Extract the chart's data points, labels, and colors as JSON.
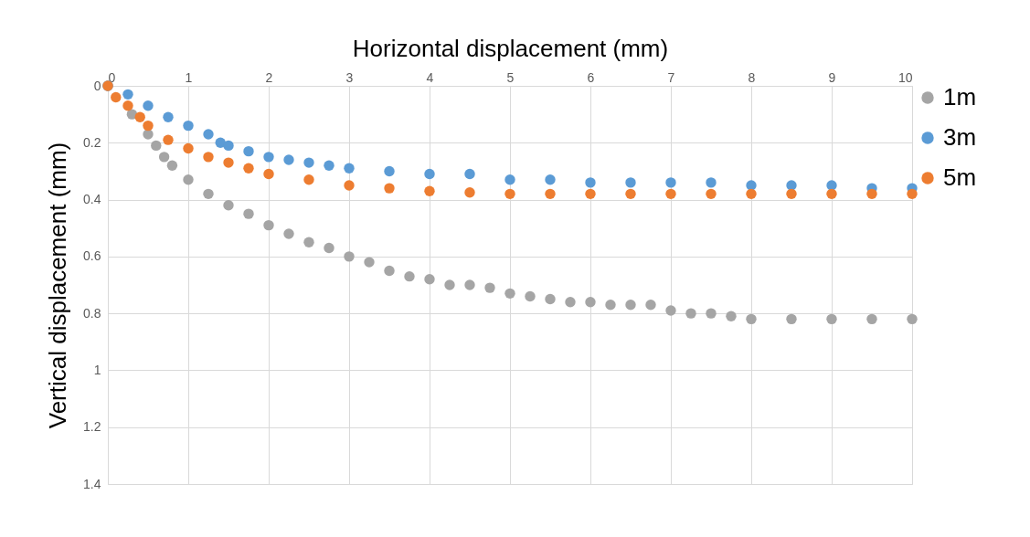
{
  "chart_data": {
    "type": "scatter",
    "xlabel": "Horizontal displacement (mm)",
    "ylabel": "Vertical displacement (mm)",
    "xlim": [
      0,
      10
    ],
    "xticks": [
      0,
      1,
      2,
      3,
      4,
      5,
      6,
      7,
      8,
      9,
      10
    ],
    "ylim": [
      1.4,
      0
    ],
    "yticks": [
      0,
      0.2,
      0.4,
      0.6,
      0.8,
      1,
      1.2,
      1.4
    ],
    "grid": true,
    "legend": "right",
    "marker": "circle",
    "series": [
      {
        "name": "1m",
        "color": "#a5a5a5",
        "x": [
          0,
          0.3,
          0.5,
          0.6,
          0.7,
          0.8,
          1,
          1.25,
          1.5,
          1.75,
          2,
          2.25,
          2.5,
          2.75,
          3,
          3.25,
          3.5,
          3.75,
          4,
          4.25,
          4.5,
          4.75,
          5,
          5.25,
          5.5,
          5.75,
          6,
          6.25,
          6.5,
          6.75,
          7,
          7.25,
          7.5,
          7.75,
          8,
          8.5,
          9,
          9.5,
          10
        ],
        "values": [
          0,
          0.1,
          0.17,
          0.21,
          0.25,
          0.28,
          0.33,
          0.38,
          0.42,
          0.45,
          0.49,
          0.52,
          0.55,
          0.57,
          0.6,
          0.62,
          0.65,
          0.67,
          0.68,
          0.7,
          0.7,
          0.71,
          0.73,
          0.74,
          0.75,
          0.76,
          0.76,
          0.77,
          0.77,
          0.77,
          0.79,
          0.8,
          0.8,
          0.81,
          0.82,
          0.82,
          0.82,
          0.82,
          0.82
        ]
      },
      {
        "name": "3m",
        "color": "#5b9bd5",
        "x": [
          0,
          0.25,
          0.5,
          0.75,
          1,
          1.25,
          1.4,
          1.5,
          1.75,
          2,
          2.25,
          2.5,
          2.75,
          3,
          3.5,
          4,
          4.5,
          5,
          5.5,
          6,
          6.5,
          7,
          7.5,
          8,
          8.5,
          9,
          9.5,
          10
        ],
        "values": [
          0,
          0.03,
          0.07,
          0.11,
          0.14,
          0.17,
          0.2,
          0.21,
          0.23,
          0.25,
          0.26,
          0.27,
          0.28,
          0.29,
          0.3,
          0.31,
          0.31,
          0.33,
          0.33,
          0.34,
          0.34,
          0.34,
          0.34,
          0.35,
          0.35,
          0.35,
          0.36,
          0.36
        ]
      },
      {
        "name": "5m",
        "color": "#ed7d31",
        "x": [
          0,
          0.1,
          0.25,
          0.4,
          0.5,
          0.75,
          1,
          1.25,
          1.5,
          1.75,
          2,
          2.5,
          3,
          3.5,
          4,
          4.5,
          5,
          5.5,
          6,
          6.5,
          7,
          7.5,
          8,
          8.5,
          9,
          9.5,
          10
        ],
        "values": [
          0,
          0.04,
          0.07,
          0.11,
          0.14,
          0.19,
          0.22,
          0.25,
          0.27,
          0.29,
          0.31,
          0.33,
          0.35,
          0.36,
          0.37,
          0.375,
          0.38,
          0.38,
          0.38,
          0.38,
          0.38,
          0.38,
          0.38,
          0.38,
          0.38,
          0.38,
          0.38
        ]
      }
    ]
  }
}
